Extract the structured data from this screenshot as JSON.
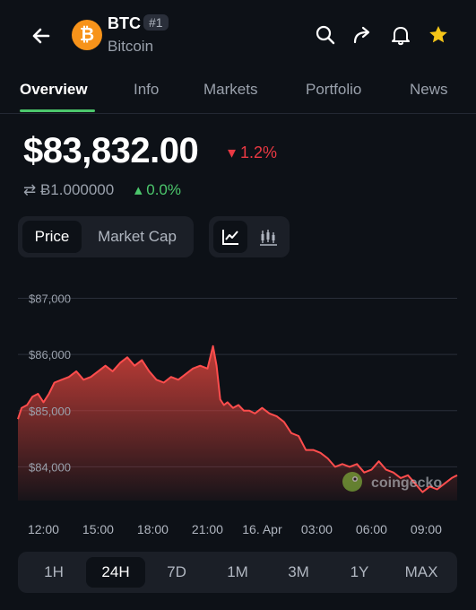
{
  "header": {
    "symbol": "BTC",
    "rank": "#1",
    "name": "Bitcoin",
    "logo_glyph": "₿",
    "icons": [
      "back-arrow-icon",
      "search-icon",
      "share-icon",
      "bell-icon",
      "star-icon"
    ]
  },
  "tabs": [
    {
      "label": "Overview",
      "active": true
    },
    {
      "label": "Info",
      "active": false
    },
    {
      "label": "Markets",
      "active": false
    },
    {
      "label": "Portfolio",
      "active": false
    },
    {
      "label": "News",
      "active": false
    }
  ],
  "price": {
    "value": "$83,832.00",
    "change": "▾ 1.2%",
    "btc_value": "⇄  Ƀ1.000000",
    "btc_change": "▴ 0.0%"
  },
  "metric_toggle": {
    "price": "Price",
    "market_cap": "Market Cap"
  },
  "chart_toggle_icons": [
    "line-chart-icon",
    "candlestick-icon"
  ],
  "watermark": "coingecko",
  "colors": {
    "background": "#0d1117",
    "up": "#4cc76c",
    "down": "#ea3943",
    "star": "#f5c518",
    "btc_orange": "#f7931a"
  },
  "range_buttons": [
    {
      "label": "1H",
      "active": false
    },
    {
      "label": "24H",
      "active": true
    },
    {
      "label": "7D",
      "active": false
    },
    {
      "label": "1M",
      "active": false
    },
    {
      "label": "3M",
      "active": false
    },
    {
      "label": "1Y",
      "active": false
    },
    {
      "label": "MAX",
      "active": false
    }
  ],
  "chart_data": {
    "type": "area",
    "title": "",
    "xlabel": "",
    "ylabel": "",
    "ylim": [
      83400,
      87200
    ],
    "grid": true,
    "y_ticks": [
      {
        "value": 87000,
        "label": "$87,000"
      },
      {
        "value": 86000,
        "label": "$86,000"
      },
      {
        "value": 85000,
        "label": "$85,000"
      },
      {
        "value": 84000,
        "label": "$84,000"
      }
    ],
    "x_ticks": [
      {
        "t": 12.0,
        "label": "12:00"
      },
      {
        "t": 15.0,
        "label": "15:00"
      },
      {
        "t": 18.0,
        "label": "18:00"
      },
      {
        "t": 21.0,
        "label": "21:00"
      },
      {
        "t": 24.0,
        "label": "16. Apr"
      },
      {
        "t": 27.0,
        "label": "03:00"
      },
      {
        "t": 30.0,
        "label": "06:00"
      },
      {
        "t": 33.0,
        "label": "09:00"
      }
    ],
    "xlim": [
      10.6,
      34.7
    ],
    "series": [
      {
        "x": [
          10.6,
          10.8,
          11.1,
          11.4,
          11.7,
          12.0,
          12.3,
          12.6,
          13.0,
          13.4,
          13.8,
          14.2,
          14.6,
          15.0,
          15.4,
          15.8,
          16.2,
          16.6,
          17.0,
          17.4,
          17.8,
          18.2,
          18.6,
          19.0,
          19.4,
          19.8,
          20.2,
          20.6,
          21.0,
          21.3,
          21.5,
          21.7,
          21.9,
          22.1,
          22.4,
          22.7,
          23.0,
          23.3,
          23.6,
          24.0,
          24.4,
          24.8,
          25.2,
          25.6,
          26.0,
          26.4,
          26.8,
          27.2,
          27.6,
          28.0,
          28.4,
          28.8,
          29.2,
          29.6,
          30.0,
          30.4,
          30.8,
          31.2,
          31.6,
          32.0,
          32.4,
          32.8,
          33.2,
          33.6,
          34.0,
          34.4,
          34.7
        ],
        "values": [
          84850,
          85050,
          85100,
          85250,
          85300,
          85150,
          85300,
          85500,
          85550,
          85600,
          85700,
          85550,
          85600,
          85700,
          85800,
          85700,
          85850,
          85950,
          85800,
          85900,
          85700,
          85550,
          85500,
          85600,
          85550,
          85650,
          85750,
          85800,
          85750,
          86150,
          85800,
          85200,
          85100,
          85150,
          85050,
          85100,
          85000,
          85000,
          84950,
          85050,
          84950,
          84900,
          84800,
          84600,
          84550,
          84300,
          84300,
          84250,
          84150,
          84000,
          84050,
          84000,
          84050,
          83900,
          83950,
          84100,
          83950,
          83900,
          83800,
          83850,
          83700,
          83550,
          83650,
          83600,
          83700,
          83800,
          83850
        ]
      }
    ]
  }
}
